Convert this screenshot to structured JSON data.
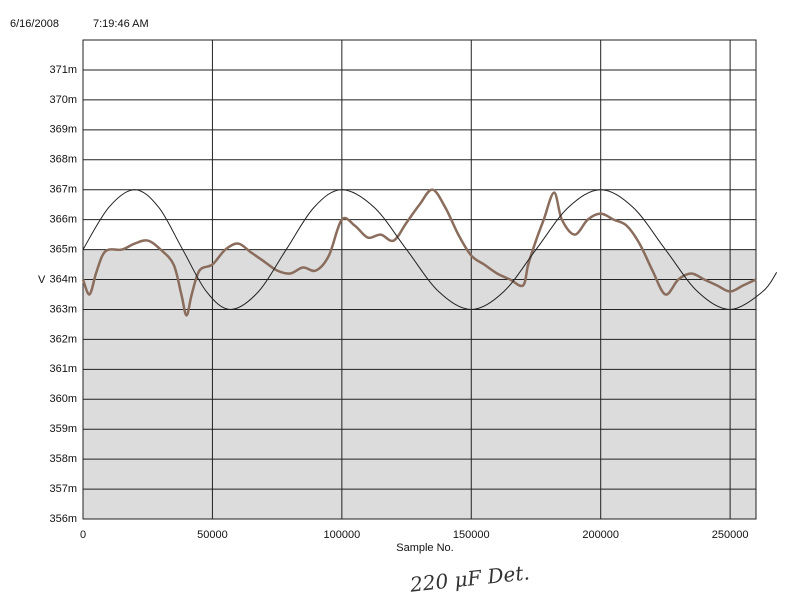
{
  "chart_data": {
    "type": "line",
    "date": "6/16/2008",
    "time": "7:19:46 AM",
    "xlabel": "Sample No.",
    "ylabel": "V",
    "annotation": "220 μF Det.",
    "xlim": [
      0,
      260000
    ],
    "xticks": [
      0,
      50000,
      100000,
      150000,
      200000,
      250000
    ],
    "ylim": [
      0.356,
      0.372
    ],
    "yticks": [
      {
        "value": 0.356,
        "label": "356m"
      },
      {
        "value": 0.357,
        "label": "357m"
      },
      {
        "value": 0.358,
        "label": "358m"
      },
      {
        "value": 0.359,
        "label": "359m"
      },
      {
        "value": 0.36,
        "label": "360m"
      },
      {
        "value": 0.361,
        "label": "361m"
      },
      {
        "value": 0.362,
        "label": "362m"
      },
      {
        "value": 0.363,
        "label": "363m"
      },
      {
        "value": 0.364,
        "label": "364m"
      },
      {
        "value": 0.365,
        "label": "365m"
      },
      {
        "value": 0.366,
        "label": "366m"
      },
      {
        "value": 0.367,
        "label": "367m"
      },
      {
        "value": 0.368,
        "label": "368m"
      },
      {
        "value": 0.369,
        "label": "369m"
      },
      {
        "value": 0.37,
        "label": "370m"
      },
      {
        "value": 0.371,
        "label": "371m"
      }
    ],
    "grid": true,
    "series": [
      {
        "color": "#8a6d5c",
        "x": [
          0,
          2500,
          5000,
          7500,
          10000,
          15000,
          20000,
          25000,
          30000,
          35000,
          38000,
          40000,
          42000,
          45000,
          50000,
          55000,
          60000,
          65000,
          70000,
          75000,
          80000,
          85000,
          90000,
          95000,
          100000,
          105000,
          110000,
          115000,
          120000,
          125000,
          130000,
          135000,
          140000,
          145000,
          150000,
          155000,
          160000,
          165000,
          170000,
          172000,
          175000,
          178000,
          182000,
          185000,
          190000,
          195000,
          200000,
          205000,
          210000,
          215000,
          220000,
          225000,
          230000,
          235000,
          240000,
          245000,
          250000,
          255000,
          260000
        ],
        "values": [
          0.364,
          0.3635,
          0.3642,
          0.3648,
          0.365,
          0.365,
          0.3652,
          0.3653,
          0.365,
          0.3645,
          0.3635,
          0.3628,
          0.3635,
          0.3643,
          0.3645,
          0.365,
          0.3652,
          0.3649,
          0.3646,
          0.3643,
          0.3642,
          0.3644,
          0.3643,
          0.3648,
          0.366,
          0.3658,
          0.3654,
          0.3655,
          0.3653,
          0.3659,
          0.3665,
          0.367,
          0.3664,
          0.3655,
          0.3648,
          0.3645,
          0.3642,
          0.364,
          0.3638,
          0.3645,
          0.3653,
          0.366,
          0.3669,
          0.366,
          0.3655,
          0.366,
          0.3662,
          0.366,
          0.3658,
          0.3652,
          0.3643,
          0.3635,
          0.364,
          0.3642,
          0.364,
          0.3638,
          0.3636,
          0.3638,
          0.364
        ]
      },
      {
        "color": "#222222",
        "x": [
          0,
          10000,
          20000,
          29250,
          38500,
          47750,
          57000,
          67750,
          78500,
          89250,
          100000,
          112500,
          125000,
          137500,
          150000,
          162500,
          175000,
          187500,
          200000,
          212500,
          225000,
          237500,
          250000,
          262500,
          268000
        ],
        "values": [
          0.365,
          0.36641,
          0.367,
          0.36641,
          0.365,
          0.36359,
          0.363,
          0.36359,
          0.365,
          0.36641,
          0.367,
          0.36641,
          0.365,
          0.36359,
          0.363,
          0.36359,
          0.365,
          0.36641,
          0.367,
          0.36641,
          0.365,
          0.36359,
          0.363,
          0.36359,
          0.36424
        ]
      }
    ]
  }
}
